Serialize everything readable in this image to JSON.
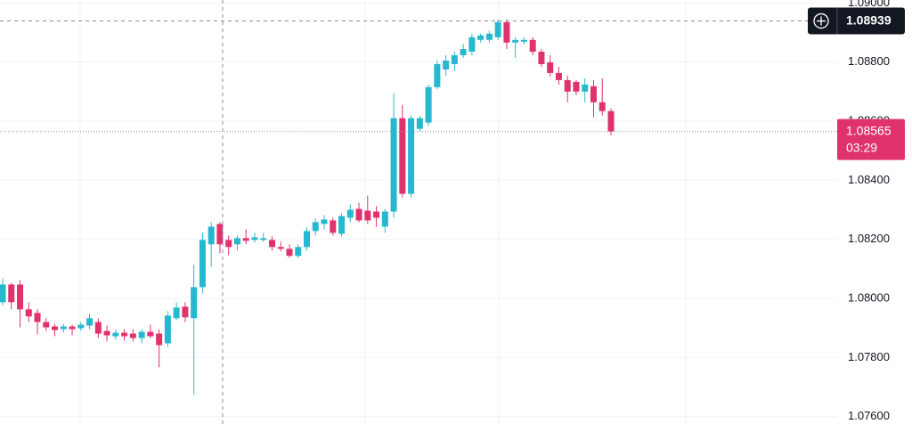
{
  "chart_data": {
    "type": "candlestick",
    "up_color": "#26b8cf",
    "down_color": "#e0336e",
    "grid": true,
    "ylim": [
      1.07575,
      1.0901
    ],
    "yticks": [
      {
        "value": 1.076,
        "label": "1.07600"
      },
      {
        "value": 1.078,
        "label": "1.07800"
      },
      {
        "value": 1.08,
        "label": "1.08000"
      },
      {
        "value": 1.082,
        "label": "1.08200"
      },
      {
        "value": 1.084,
        "label": "1.08400"
      },
      {
        "value": 1.086,
        "label": "1.08600"
      },
      {
        "value": 1.088,
        "label": "1.08800"
      },
      {
        "value": 1.09,
        "label": "1.09000"
      }
    ],
    "crosshair_price": 1.08939,
    "last_price": 1.08565,
    "countdown": "03:29",
    "open": [
      1.07987,
      1.08047,
      1.08047,
      1.07963,
      1.07951,
      1.0792,
      1.07905,
      1.07896,
      1.07905,
      1.07899,
      1.07908,
      1.0792,
      1.0789,
      1.07872,
      1.07884,
      1.07881,
      1.07866,
      1.07887,
      1.07881,
      1.07848,
      1.07933,
      1.07972,
      1.07933,
      1.08038,
      1.08183,
      1.08252,
      1.08198,
      1.08183,
      1.08204,
      1.08198,
      1.08198,
      1.08198,
      1.08174,
      1.08168,
      1.08144,
      1.08174,
      1.08228,
      1.08252,
      1.08264,
      1.08219,
      1.08273,
      1.08303,
      1.08297,
      1.08294,
      1.08243,
      1.08294,
      1.0861,
      1.08354,
      1.08574,
      1.08595,
      1.08715,
      1.08775,
      1.08793,
      1.08823,
      1.08835,
      1.08875,
      1.08875,
      1.08884,
      1.08935,
      1.08866,
      1.08869,
      1.08875,
      1.08835,
      1.08799,
      1.08763,
      1.08739,
      1.08733,
      1.087,
      1.08718,
      1.08664,
      1.08634
    ],
    "high": [
      1.08068,
      1.08053,
      1.08062,
      1.07987,
      1.07963,
      1.07933,
      1.07914,
      1.07914,
      1.07911,
      1.0792,
      1.07948,
      1.07933,
      1.07908,
      1.07896,
      1.07896,
      1.07896,
      1.07896,
      1.07911,
      1.07896,
      1.07957,
      1.07987,
      1.07987,
      1.08114,
      1.08222,
      1.08258,
      1.08258,
      1.08213,
      1.08213,
      1.08234,
      1.08222,
      1.08222,
      1.0821,
      1.08192,
      1.08183,
      1.08183,
      1.0824,
      1.0827,
      1.08282,
      1.08273,
      1.08288,
      1.08318,
      1.08324,
      1.08348,
      1.08312,
      1.08303,
      1.08694,
      1.08655,
      1.08619,
      1.08619,
      1.08724,
      1.08805,
      1.08823,
      1.08835,
      1.0886,
      1.08896,
      1.08896,
      1.08905,
      1.08944,
      1.08944,
      1.08884,
      1.08884,
      1.08884,
      1.08844,
      1.08823,
      1.08784,
      1.08754,
      1.08739,
      1.08745,
      1.08739,
      1.08745,
      1.08643
    ],
    "low": [
      1.07978,
      1.07963,
      1.07902,
      1.0792,
      1.07878,
      1.0789,
      1.07872,
      1.07884,
      1.07875,
      1.0789,
      1.07896,
      1.07866,
      1.07854,
      1.0786,
      1.07857,
      1.07854,
      1.07848,
      1.07866,
      1.07767,
      1.07836,
      1.07926,
      1.0792,
      1.07676,
      1.08017,
      1.08107,
      1.08153,
      1.08147,
      1.08162,
      1.08183,
      1.08189,
      1.08192,
      1.08162,
      1.08159,
      1.08138,
      1.08138,
      1.08162,
      1.08213,
      1.08234,
      1.08213,
      1.0821,
      1.08258,
      1.08258,
      1.08252,
      1.08243,
      1.08222,
      1.08273,
      1.08342,
      1.08342,
      1.08565,
      1.08583,
      1.08709,
      1.08754,
      1.08769,
      1.08814,
      1.08823,
      1.08866,
      1.08866,
      1.08875,
      1.08844,
      1.08814,
      1.0886,
      1.08823,
      1.08784,
      1.08751,
      1.08724,
      1.08664,
      1.08688,
      1.08664,
      1.08613,
      1.08619,
      1.08552
    ],
    "close": [
      1.08047,
      1.07987,
      1.07963,
      1.07939,
      1.0792,
      1.07902,
      1.07893,
      1.07905,
      1.07896,
      1.07911,
      1.07933,
      1.07881,
      1.07875,
      1.07884,
      1.07872,
      1.07866,
      1.07887,
      1.07872,
      1.07842,
      1.07942,
      1.07969,
      1.07936,
      1.08038,
      1.08198,
      1.08243,
      1.08183,
      1.08174,
      1.08204,
      1.08195,
      1.08207,
      1.08204,
      1.08174,
      1.08168,
      1.08144,
      1.08174,
      1.08228,
      1.08258,
      1.08267,
      1.08222,
      1.08279,
      1.083,
      1.08264,
      1.08264,
      1.08273,
      1.08294,
      1.0861,
      1.08354,
      1.0861,
      1.0861,
      1.08715,
      1.08793,
      1.08805,
      1.08823,
      1.08844,
      1.08884,
      1.0889,
      1.08896,
      1.08935,
      1.08866,
      1.08875,
      1.08875,
      1.08835,
      1.08793,
      1.08763,
      1.08739,
      1.087,
      1.087,
      1.08724,
      1.08664,
      1.08634,
      1.08565
    ]
  }
}
